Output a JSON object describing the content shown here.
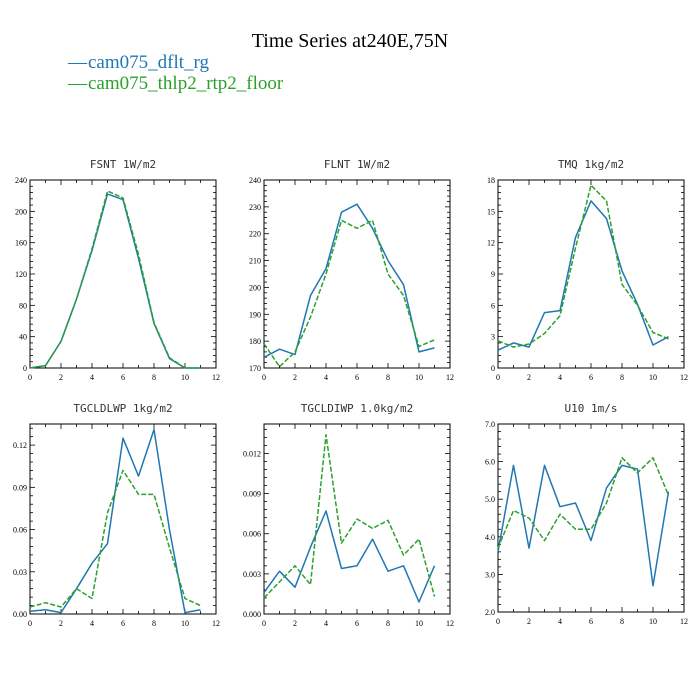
{
  "title": "Time Series at240E,75N",
  "legend": [
    {
      "label": "cam075_dflt_rg",
      "color": "#1f77b4"
    },
    {
      "label": "cam075_thlp2_rtp2_floor",
      "color": "#2ca02c"
    }
  ],
  "chart_data": [
    {
      "type": "line",
      "title": "FSNT  1W/m2",
      "xlim": [
        0,
        12
      ],
      "ylim": [
        0,
        240
      ],
      "xticks": [
        "0",
        "2",
        "4",
        "6",
        "8",
        "10",
        "12"
      ],
      "yticks": [
        "0",
        "40",
        "80",
        "120",
        "160",
        "200",
        "240"
      ],
      "x": [
        0,
        1,
        2,
        3,
        4,
        5,
        6,
        7,
        8,
        9,
        10,
        11
      ],
      "series": [
        {
          "name": "cam075_dflt_rg",
          "values": [
            0,
            3,
            34,
            88,
            150,
            222,
            215,
            140,
            57,
            12,
            0,
            0
          ]
        },
        {
          "name": "cam075_thlp2_rtp2_floor",
          "values": [
            0,
            3,
            34,
            88,
            152,
            226,
            217,
            145,
            58,
            13,
            0,
            0
          ]
        }
      ]
    },
    {
      "type": "line",
      "title": "FLNT  1W/m2",
      "xlim": [
        0,
        12
      ],
      "ylim": [
        170,
        240
      ],
      "xticks": [
        "0",
        "2",
        "4",
        "6",
        "8",
        "10",
        "12"
      ],
      "yticks": [
        "170",
        "180",
        "190",
        "200",
        "210",
        "220",
        "230",
        "240"
      ],
      "x": [
        0,
        1,
        2,
        3,
        4,
        5,
        6,
        7,
        8,
        9,
        10,
        11
      ],
      "series": [
        {
          "name": "cam075_dflt_rg",
          "values": [
            174,
            177,
            175,
            197,
            207,
            228,
            231,
            222,
            210,
            201,
            176,
            177.5
          ]
        },
        {
          "name": "cam075_thlp2_rtp2_floor",
          "values": [
            179,
            170.5,
            176,
            189,
            205,
            225,
            222,
            225,
            205,
            197,
            178,
            180.5
          ]
        }
      ]
    },
    {
      "type": "line",
      "title": "TMQ  1kg/m2",
      "xlim": [
        0,
        12
      ],
      "ylim": [
        0,
        18
      ],
      "xticks": [
        "0",
        "2",
        "4",
        "6",
        "8",
        "10",
        "12"
      ],
      "yticks": [
        "0",
        "3",
        "6",
        "9",
        "12",
        "15",
        "18"
      ],
      "x": [
        0,
        1,
        2,
        3,
        4,
        5,
        6,
        7,
        8,
        9,
        10,
        11
      ],
      "series": [
        {
          "name": "cam075_dflt_rg",
          "values": [
            1.7,
            2.4,
            2.0,
            5.3,
            5.5,
            12.5,
            16.0,
            14.3,
            9.3,
            6.1,
            2.2,
            3.0
          ]
        },
        {
          "name": "cam075_thlp2_rtp2_floor",
          "values": [
            2.6,
            2.0,
            2.3,
            3.3,
            5.0,
            11.5,
            17.5,
            16.0,
            8.0,
            6.0,
            3.4,
            2.8
          ]
        }
      ]
    },
    {
      "type": "line",
      "title": "TGCLDLWP  1kg/m2",
      "xlim": [
        0,
        12
      ],
      "ylim": [
        0,
        0.135
      ],
      "xticks": [
        "0",
        "2",
        "4",
        "6",
        "8",
        "10",
        "12"
      ],
      "yticks": [
        "0.00",
        "0.03",
        "0.06",
        "0.09",
        "0.12"
      ],
      "yticksv": [
        0,
        0.03,
        0.06,
        0.09,
        0.12
      ],
      "x": [
        0,
        1,
        2,
        3,
        4,
        5,
        6,
        7,
        8,
        9,
        10,
        11
      ],
      "series": [
        {
          "name": "cam075_dflt_rg",
          "values": [
            0.002,
            0.003,
            0.001,
            0.018,
            0.036,
            0.05,
            0.125,
            0.098,
            0.131,
            0.06,
            0.001,
            0.003
          ]
        },
        {
          "name": "cam075_thlp2_rtp2_floor",
          "values": [
            0.005,
            0.008,
            0.005,
            0.018,
            0.011,
            0.072,
            0.102,
            0.085,
            0.085,
            0.047,
            0.011,
            0.006
          ]
        }
      ]
    },
    {
      "type": "line",
      "title": "TGCLDIWP  1.0kg/m2",
      "xlim": [
        0,
        12
      ],
      "ylim": [
        0,
        0.0142
      ],
      "xticks": [
        "0",
        "2",
        "4",
        "6",
        "8",
        "10",
        "12"
      ],
      "yticks": [
        "0.000",
        "0.003",
        "0.006",
        "0.009",
        "0.012"
      ],
      "yticksv": [
        0,
        0.003,
        0.006,
        0.009,
        0.012
      ],
      "x": [
        0,
        1,
        2,
        3,
        4,
        5,
        6,
        7,
        8,
        9,
        10,
        11
      ],
      "series": [
        {
          "name": "cam075_dflt_rg",
          "values": [
            0.0016,
            0.0032,
            0.002,
            0.005,
            0.0077,
            0.0034,
            0.0036,
            0.0056,
            0.0032,
            0.0036,
            0.0009,
            0.0036
          ]
        },
        {
          "name": "cam075_thlp2_rtp2_floor",
          "values": [
            0.0012,
            0.0024,
            0.0036,
            0.0022,
            0.0134,
            0.0053,
            0.0071,
            0.0064,
            0.007,
            0.0044,
            0.0056,
            0.0013
          ]
        }
      ]
    },
    {
      "type": "line",
      "title": "U10  1m/s",
      "xlim": [
        0,
        12
      ],
      "ylim": [
        2,
        7
      ],
      "xticks": [
        "0",
        "2",
        "4",
        "6",
        "8",
        "10",
        "12"
      ],
      "yticks": [
        "2.0",
        "3.0",
        "4.0",
        "5.0",
        "6.0",
        "7.0"
      ],
      "yticksv": [
        2,
        3,
        4,
        5,
        6,
        7
      ],
      "x": [
        0,
        1,
        2,
        3,
        4,
        5,
        6,
        7,
        8,
        9,
        10,
        11
      ],
      "series": [
        {
          "name": "cam075_dflt_rg",
          "values": [
            3.6,
            5.9,
            3.7,
            5.9,
            4.8,
            4.9,
            3.9,
            5.3,
            5.9,
            5.8,
            2.7,
            5.2
          ]
        },
        {
          "name": "cam075_thlp2_rtp2_floor",
          "values": [
            3.7,
            4.7,
            4.5,
            3.9,
            4.6,
            4.2,
            4.2,
            4.9,
            6.1,
            5.7,
            6.1,
            5.1
          ]
        }
      ]
    }
  ]
}
